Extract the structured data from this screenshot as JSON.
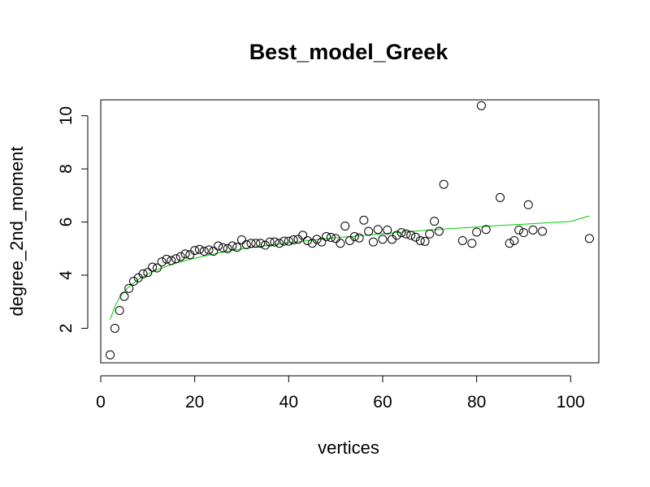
{
  "chart_data": {
    "type": "scatter",
    "title": "Best_model_Greek",
    "xlabel": "vertices",
    "ylabel": "degree_2nd_moment",
    "xlim": [
      0,
      106
    ],
    "ylim": [
      0.7,
      10.6
    ],
    "xticks": [
      0,
      20,
      40,
      60,
      80,
      100
    ],
    "yticks": [
      2,
      4,
      6,
      8,
      10
    ],
    "grid": false,
    "point_color": "#000000",
    "fit_color": "#00cc00",
    "points": [
      [
        2,
        1.0
      ],
      [
        3,
        2.0
      ],
      [
        4,
        2.67
      ],
      [
        5,
        3.2
      ],
      [
        6,
        3.5
      ],
      [
        7,
        3.77
      ],
      [
        8,
        3.9
      ],
      [
        9,
        4.05
      ],
      [
        10,
        4.1
      ],
      [
        11,
        4.3
      ],
      [
        12,
        4.27
      ],
      [
        13,
        4.5
      ],
      [
        14,
        4.6
      ],
      [
        15,
        4.55
      ],
      [
        16,
        4.62
      ],
      [
        17,
        4.7
      ],
      [
        18,
        4.8
      ],
      [
        19,
        4.77
      ],
      [
        20,
        4.93
      ],
      [
        21,
        4.97
      ],
      [
        22,
        4.9
      ],
      [
        23,
        4.95
      ],
      [
        24,
        4.9
      ],
      [
        25,
        5.1
      ],
      [
        26,
        5.03
      ],
      [
        27,
        5.0
      ],
      [
        28,
        5.1
      ],
      [
        29,
        5.05
      ],
      [
        30,
        5.33
      ],
      [
        31,
        5.15
      ],
      [
        32,
        5.2
      ],
      [
        33,
        5.2
      ],
      [
        34,
        5.2
      ],
      [
        35,
        5.13
      ],
      [
        36,
        5.25
      ],
      [
        37,
        5.25
      ],
      [
        38,
        5.2
      ],
      [
        39,
        5.28
      ],
      [
        40,
        5.28
      ],
      [
        41,
        5.33
      ],
      [
        42,
        5.35
      ],
      [
        43,
        5.5
      ],
      [
        44,
        5.3
      ],
      [
        45,
        5.2
      ],
      [
        46,
        5.35
      ],
      [
        47,
        5.25
      ],
      [
        48,
        5.45
      ],
      [
        49,
        5.42
      ],
      [
        50,
        5.38
      ],
      [
        51,
        5.2
      ],
      [
        52,
        5.85
      ],
      [
        53,
        5.3
      ],
      [
        54,
        5.45
      ],
      [
        55,
        5.4
      ],
      [
        56,
        6.07
      ],
      [
        57,
        5.65
      ],
      [
        58,
        5.25
      ],
      [
        59,
        5.72
      ],
      [
        60,
        5.35
      ],
      [
        61,
        5.7
      ],
      [
        62,
        5.35
      ],
      [
        63,
        5.5
      ],
      [
        64,
        5.6
      ],
      [
        65,
        5.55
      ],
      [
        66,
        5.5
      ],
      [
        67,
        5.43
      ],
      [
        68,
        5.3
      ],
      [
        69,
        5.27
      ],
      [
        70,
        5.55
      ],
      [
        71,
        6.03
      ],
      [
        72,
        5.65
      ],
      [
        73,
        7.42
      ],
      [
        77,
        5.3
      ],
      [
        79,
        5.2
      ],
      [
        80,
        5.62
      ],
      [
        81,
        10.38
      ],
      [
        82,
        5.72
      ],
      [
        85,
        6.92
      ],
      [
        87,
        5.2
      ],
      [
        88,
        5.3
      ],
      [
        89,
        5.7
      ],
      [
        90,
        5.6
      ],
      [
        91,
        6.65
      ],
      [
        92,
        5.7
      ],
      [
        94,
        5.65
      ],
      [
        104,
        5.38
      ]
    ],
    "fit": {
      "x": [
        2,
        3,
        4,
        5,
        6,
        8,
        10,
        12,
        15,
        18,
        20,
        25,
        30,
        35,
        40,
        45,
        50,
        55,
        60,
        65,
        70,
        75,
        80,
        85,
        90,
        95,
        100,
        104
      ],
      "y": [
        2.32,
        2.82,
        3.15,
        3.38,
        3.56,
        3.84,
        4.04,
        4.2,
        4.4,
        4.55,
        4.64,
        4.83,
        4.99,
        5.11,
        5.22,
        5.32,
        5.41,
        5.48,
        5.56,
        5.63,
        5.7,
        5.76,
        5.81,
        5.87,
        5.92,
        5.97,
        6.02,
        6.23
      ]
    }
  }
}
